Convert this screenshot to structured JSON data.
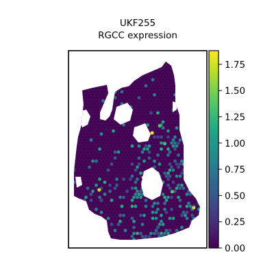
{
  "chart_data": {
    "type": "scatter",
    "subtype": "spatial-hexagonal-spot-map",
    "title": "UKF255",
    "subtitle": "RGCC expression",
    "xlabel": "",
    "ylabel": "",
    "grid": false,
    "axes_ticks": false,
    "colormap": "viridis",
    "colorbar": {
      "min": 0.0,
      "max": 1.88,
      "ticks": [
        0.0,
        0.25,
        0.5,
        0.75,
        1.0,
        1.25,
        1.5,
        1.75
      ],
      "tick_labels": [
        "0.00",
        "0.25",
        "0.50",
        "0.75",
        "1.00",
        "1.25",
        "1.50",
        "1.75"
      ]
    },
    "value_distribution": "most spots 0.00 (dark purple); scattered spots 0.5–1.25, enriched in lower-right region; a few spots ≈1.75–1.88 (yellow)",
    "highlight_spots": [
      {
        "x": 0.62,
        "y": 0.6,
        "value": 1.8
      },
      {
        "x": 0.55,
        "y": 0.35,
        "value": 1.75
      },
      {
        "x": 0.2,
        "y": 0.28,
        "value": 1.7
      },
      {
        "x": 0.78,
        "y": 0.27,
        "value": 1.4
      },
      {
        "x": 0.95,
        "y": 0.18,
        "value": 1.7
      },
      {
        "x": 0.39,
        "y": 0.87,
        "value": 1.5
      },
      {
        "x": 0.68,
        "y": 0.64,
        "value": 1.35
      },
      {
        "x": 0.72,
        "y": 0.54,
        "value": 1.3
      }
    ]
  }
}
